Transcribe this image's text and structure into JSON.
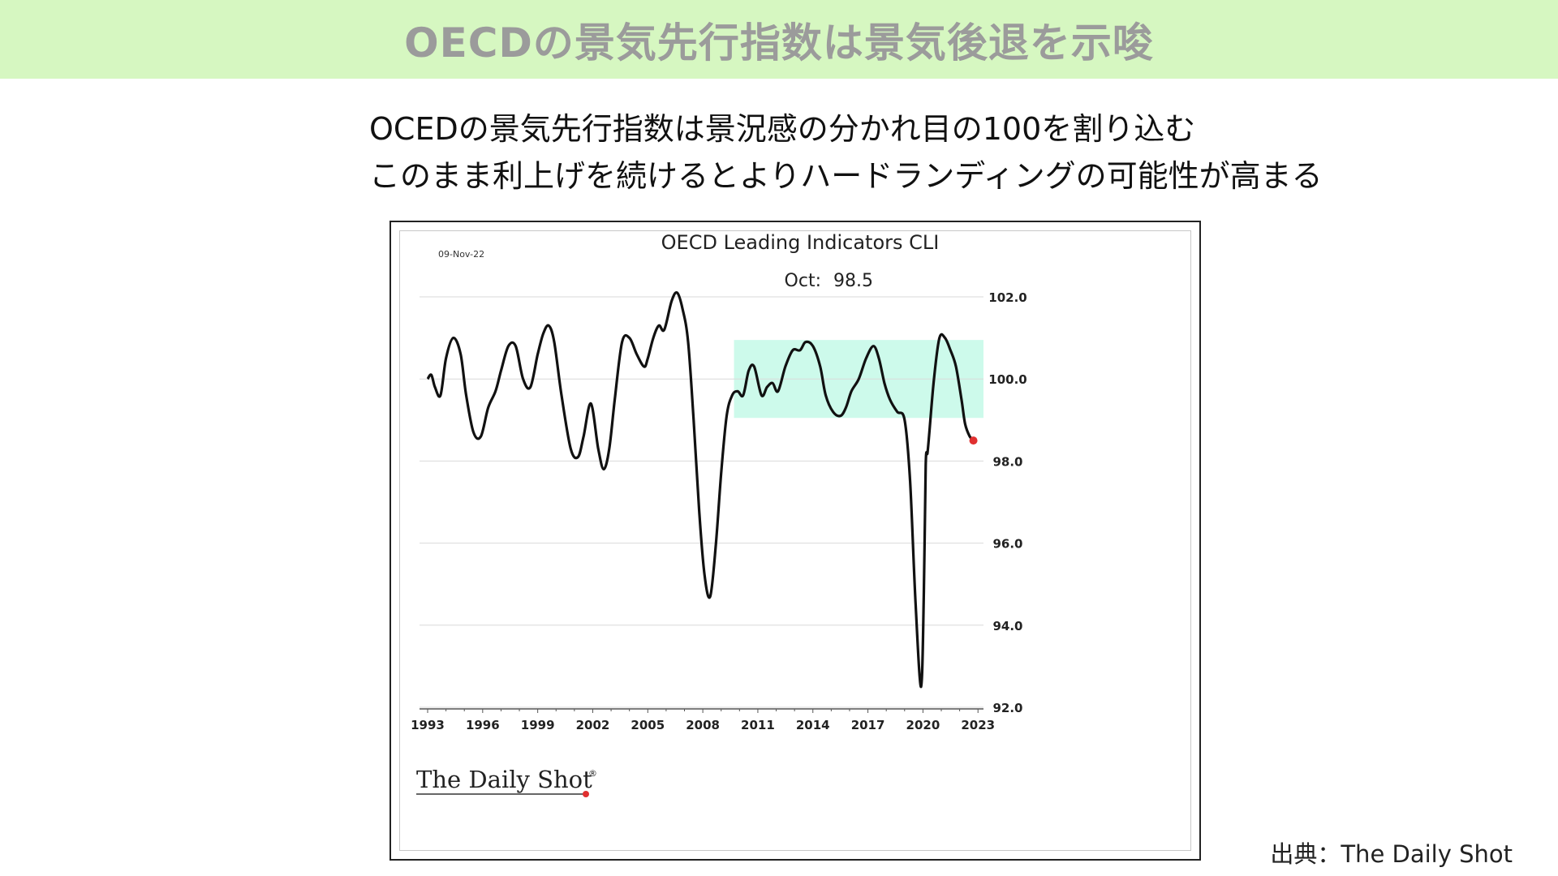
{
  "header": {
    "title": "OECDの景気先行指数は景気後退を示唆",
    "background": "#d6f7c1"
  },
  "commentary": {
    "line1": "OCEDの景気先行指数は景況感の分かれ目の100を割り込む",
    "line2": "このまま利上げを続けるとよりハードランディングの可能性が高まる"
  },
  "source": "出典：The Daily Shot",
  "chart_data": {
    "type": "line",
    "title": "OECD Leading Indicators CLI",
    "date_label": "09-Nov-22",
    "latest_label": "Oct:",
    "latest_value": "98.5",
    "watermark": "The Daily Shot",
    "watermark_mark": "®",
    "xlim": [
      1993,
      2023.3
    ],
    "ylim": [
      92,
      103.5
    ],
    "x_ticks": [
      "1993",
      "1996",
      "1999",
      "2002",
      "2005",
      "2008",
      "2011",
      "2014",
      "2017",
      "2020",
      "2023"
    ],
    "y_ticks": [
      "92.0",
      "94.0",
      "96.0",
      "98.0",
      "100.0",
      "102.0"
    ],
    "y_axis_side": "right",
    "grid": "horizontal",
    "band": {
      "x_from": 2009.7,
      "x_to": 2023.5,
      "y_from": 99.05,
      "y_to": 100.95,
      "color": "#cdfaeb"
    },
    "line_color": "#111111",
    "last_point_color": "#e03030",
    "series": [
      {
        "x": [
          1993.0,
          1993.2,
          1993.4,
          1993.7,
          1994.0,
          1994.4,
          1994.8,
          1995.1,
          1995.5,
          1995.9,
          1996.3,
          1996.7,
          1997.0,
          1997.4,
          1997.8,
          1998.2,
          1998.6,
          1999.0,
          1999.3,
          1999.6,
          1999.9,
          2000.3,
          2000.8,
          2001.2,
          2001.5,
          2001.9,
          2002.3,
          2002.6,
          2002.9,
          2003.2,
          2003.6,
          2004.0,
          2004.4,
          2004.8,
          2005.0,
          2005.3,
          2005.6,
          2005.9,
          2006.3,
          2006.6,
          2006.9,
          2007.2,
          2007.5,
          2007.8,
          2008.1,
          2008.4,
          2008.7,
          2009.0,
          2009.3,
          2009.6,
          2009.9,
          2010.2,
          2010.5,
          2010.8,
          2011.2,
          2011.5,
          2011.8,
          2012.1,
          2012.5,
          2012.9,
          2013.3,
          2013.6,
          2014.0,
          2014.4,
          2014.7,
          2015.1,
          2015.5,
          2015.8,
          2016.1,
          2016.5,
          2016.9,
          2017.3,
          2017.6,
          2017.9,
          2018.2,
          2018.6,
          2019.0,
          2019.3,
          2019.6,
          2019.9,
          2020.05,
          2020.15,
          2020.25,
          2020.35,
          2020.6,
          2020.9,
          2021.2,
          2021.5,
          2021.8,
          2022.1,
          2022.3,
          2022.55,
          2022.75
        ],
        "y": [
          100.0,
          100.1,
          99.8,
          99.6,
          100.5,
          101.0,
          100.6,
          99.6,
          98.7,
          98.6,
          99.3,
          99.7,
          100.2,
          100.8,
          100.8,
          100.0,
          99.8,
          100.6,
          101.1,
          101.3,
          100.9,
          99.6,
          98.3,
          98.1,
          98.6,
          99.4,
          98.3,
          97.8,
          98.3,
          99.5,
          100.9,
          101.0,
          100.6,
          100.3,
          100.5,
          101.0,
          101.3,
          101.2,
          101.9,
          102.1,
          101.7,
          100.9,
          99.0,
          96.8,
          95.2,
          94.7,
          95.9,
          97.7,
          99.1,
          99.6,
          99.7,
          99.6,
          100.2,
          100.3,
          99.6,
          99.8,
          99.9,
          99.7,
          100.3,
          100.7,
          100.7,
          100.9,
          100.8,
          100.3,
          99.6,
          99.2,
          99.1,
          99.3,
          99.7,
          100.0,
          100.5,
          100.8,
          100.5,
          99.9,
          99.5,
          99.2,
          99.0,
          97.5,
          94.5,
          92.5,
          94.8,
          97.9,
          98.2,
          98.7,
          100.0,
          101.0,
          101.0,
          100.7,
          100.3,
          99.5,
          98.9,
          98.6,
          98.5
        ]
      }
    ]
  }
}
